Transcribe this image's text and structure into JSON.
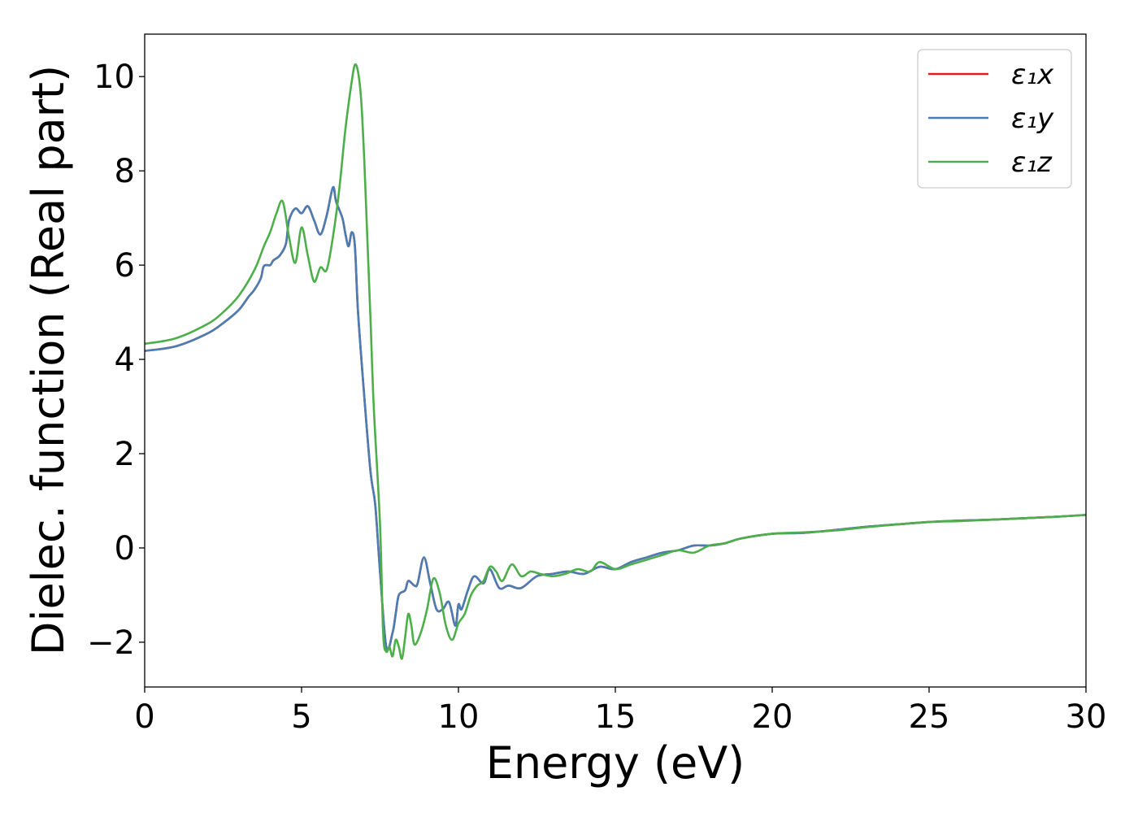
{
  "chart_data": {
    "type": "line",
    "title": "",
    "xlabel": "Energy (eV)",
    "ylabel": "Dielec. function (Real part)",
    "xlim": [
      0,
      30
    ],
    "ylim": [
      -2.95,
      10.9
    ],
    "xticks": [
      0,
      5,
      10,
      15,
      20,
      25,
      30
    ],
    "yticks": [
      -2,
      0,
      2,
      4,
      6,
      8,
      10
    ],
    "xtick_labels": [
      "0",
      "5",
      "10",
      "15",
      "20",
      "25",
      "30"
    ],
    "ytick_labels": [
      "−2",
      "0",
      "2",
      "4",
      "6",
      "8",
      "10"
    ],
    "grid": false,
    "legend_position": "top-right",
    "legend": [
      {
        "label": "ε₁x",
        "color": "#e41a1c"
      },
      {
        "label": "ε₁y",
        "color": "#4a7db3"
      },
      {
        "label": "ε₁z",
        "color": "#4daf4a"
      }
    ],
    "series": [
      {
        "name": "ε₁x",
        "color": "#e41a1c",
        "x": [
          0,
          1,
          2,
          2.5,
          3,
          3.3,
          3.5,
          3.7,
          3.8,
          4.0,
          4.1,
          4.3,
          4.5,
          4.6,
          4.8,
          5.0,
          5.2,
          5.4,
          5.6,
          5.8,
          6.0,
          6.1,
          6.3,
          6.4,
          6.5,
          6.6,
          6.7,
          6.8,
          7.0,
          7.2,
          7.35,
          7.5,
          7.7,
          7.9,
          8.0,
          8.1,
          8.3,
          8.4,
          8.6,
          8.7,
          8.9,
          9.1,
          9.3,
          9.5,
          9.7,
          9.9,
          10.0,
          10.1,
          10.3,
          10.5,
          10.8,
          11.0,
          11.3,
          11.6,
          12.0,
          12.5,
          13.0,
          13.5,
          14.0,
          14.5,
          15.0,
          15.5,
          16.0,
          16.5,
          17.0,
          17.5,
          18.0,
          18.5,
          19.0,
          20.0,
          21.0,
          22.0,
          23.0,
          24.0,
          25.0,
          26.0,
          27.0,
          28.0,
          29.0,
          30.0
        ],
        "values": [
          4.18,
          4.28,
          4.55,
          4.77,
          5.05,
          5.32,
          5.48,
          5.72,
          5.98,
          6.0,
          6.1,
          6.2,
          6.45,
          6.95,
          7.2,
          7.1,
          7.25,
          6.95,
          6.65,
          7.05,
          7.65,
          7.35,
          7.0,
          6.65,
          6.4,
          6.7,
          6.4,
          5.0,
          3.2,
          1.6,
          0.9,
          -0.5,
          -2.1,
          -1.8,
          -1.4,
          -1.0,
          -0.9,
          -0.7,
          -0.8,
          -0.75,
          -0.2,
          -0.75,
          -1.3,
          -1.3,
          -1.15,
          -1.65,
          -1.2,
          -1.3,
          -0.9,
          -0.6,
          -0.75,
          -0.45,
          -0.85,
          -0.8,
          -0.85,
          -0.6,
          -0.55,
          -0.5,
          -0.55,
          -0.4,
          -0.45,
          -0.3,
          -0.2,
          -0.1,
          -0.05,
          0.05,
          0.05,
          0.1,
          0.2,
          0.3,
          0.32,
          0.38,
          0.45,
          0.5,
          0.55,
          0.58,
          0.6,
          0.63,
          0.66,
          0.7
        ]
      },
      {
        "name": "ε₁y",
        "color": "#4a7db3",
        "x": [
          0,
          1,
          2,
          2.5,
          3,
          3.3,
          3.5,
          3.7,
          3.8,
          4.0,
          4.1,
          4.3,
          4.5,
          4.6,
          4.8,
          5.0,
          5.2,
          5.4,
          5.6,
          5.8,
          6.0,
          6.1,
          6.3,
          6.4,
          6.5,
          6.6,
          6.7,
          6.8,
          7.0,
          7.2,
          7.35,
          7.5,
          7.7,
          7.9,
          8.0,
          8.1,
          8.3,
          8.4,
          8.6,
          8.7,
          8.9,
          9.1,
          9.3,
          9.5,
          9.7,
          9.9,
          10.0,
          10.1,
          10.3,
          10.5,
          10.8,
          11.0,
          11.3,
          11.6,
          12.0,
          12.5,
          13.0,
          13.5,
          14.0,
          14.5,
          15.0,
          15.5,
          16.0,
          16.5,
          17.0,
          17.5,
          18.0,
          18.5,
          19.0,
          20.0,
          21.0,
          22.0,
          23.0,
          24.0,
          25.0,
          26.0,
          27.0,
          28.0,
          29.0,
          30.0
        ],
        "values": [
          4.18,
          4.28,
          4.55,
          4.77,
          5.05,
          5.32,
          5.48,
          5.72,
          5.98,
          6.0,
          6.1,
          6.2,
          6.45,
          6.95,
          7.2,
          7.1,
          7.25,
          6.95,
          6.65,
          7.05,
          7.65,
          7.35,
          7.0,
          6.65,
          6.4,
          6.7,
          6.4,
          5.0,
          3.2,
          1.6,
          0.9,
          -0.5,
          -2.1,
          -1.8,
          -1.4,
          -1.0,
          -0.9,
          -0.7,
          -0.8,
          -0.75,
          -0.2,
          -0.75,
          -1.3,
          -1.3,
          -1.15,
          -1.65,
          -1.2,
          -1.3,
          -0.9,
          -0.6,
          -0.75,
          -0.45,
          -0.85,
          -0.8,
          -0.85,
          -0.6,
          -0.55,
          -0.5,
          -0.55,
          -0.4,
          -0.45,
          -0.3,
          -0.2,
          -0.1,
          -0.05,
          0.05,
          0.05,
          0.1,
          0.2,
          0.3,
          0.32,
          0.38,
          0.45,
          0.5,
          0.55,
          0.58,
          0.6,
          0.63,
          0.66,
          0.7
        ]
      },
      {
        "name": "ε₁z",
        "color": "#4daf4a",
        "x": [
          0,
          1,
          2,
          2.5,
          3,
          3.5,
          3.8,
          4.0,
          4.2,
          4.4,
          4.6,
          4.8,
          5.0,
          5.2,
          5.4,
          5.6,
          5.8,
          6.0,
          6.2,
          6.4,
          6.6,
          6.7,
          6.8,
          6.9,
          7.0,
          7.1,
          7.2,
          7.3,
          7.5,
          7.6,
          7.7,
          7.8,
          7.9,
          8.0,
          8.1,
          8.2,
          8.3,
          8.4,
          8.5,
          8.6,
          8.8,
          9.0,
          9.2,
          9.4,
          9.6,
          9.8,
          10.0,
          10.2,
          10.4,
          10.6,
          10.8,
          11.0,
          11.2,
          11.4,
          11.7,
          12.0,
          12.3,
          12.6,
          13.0,
          13.4,
          13.8,
          14.2,
          14.5,
          15.0,
          15.5,
          16.0,
          16.5,
          17.0,
          17.5,
          18.0,
          18.5,
          19.0,
          20.0,
          21.0,
          22.0,
          23.0,
          24.0,
          25.0,
          26.0,
          27.0,
          28.0,
          29.0,
          30.0
        ],
        "values": [
          4.33,
          4.45,
          4.75,
          5.0,
          5.35,
          5.9,
          6.4,
          6.7,
          7.1,
          7.35,
          6.6,
          6.05,
          6.8,
          6.2,
          5.65,
          5.95,
          5.9,
          6.6,
          7.6,
          8.9,
          9.9,
          10.25,
          10.1,
          9.5,
          8.2,
          6.5,
          4.8,
          3.0,
          0.5,
          -1.8,
          -2.2,
          -2.1,
          -2.3,
          -1.95,
          -2.1,
          -2.35,
          -1.9,
          -1.4,
          -1.65,
          -2.05,
          -1.8,
          -1.3,
          -0.65,
          -0.95,
          -1.65,
          -1.95,
          -1.6,
          -1.4,
          -1.0,
          -0.8,
          -0.7,
          -0.4,
          -0.5,
          -0.7,
          -0.35,
          -0.6,
          -0.5,
          -0.55,
          -0.6,
          -0.55,
          -0.45,
          -0.5,
          -0.3,
          -0.45,
          -0.35,
          -0.25,
          -0.15,
          -0.05,
          -0.1,
          0.05,
          0.1,
          0.2,
          0.3,
          0.33,
          0.37,
          0.44,
          0.5,
          0.55,
          0.57,
          0.6,
          0.63,
          0.66,
          0.7
        ]
      }
    ]
  }
}
